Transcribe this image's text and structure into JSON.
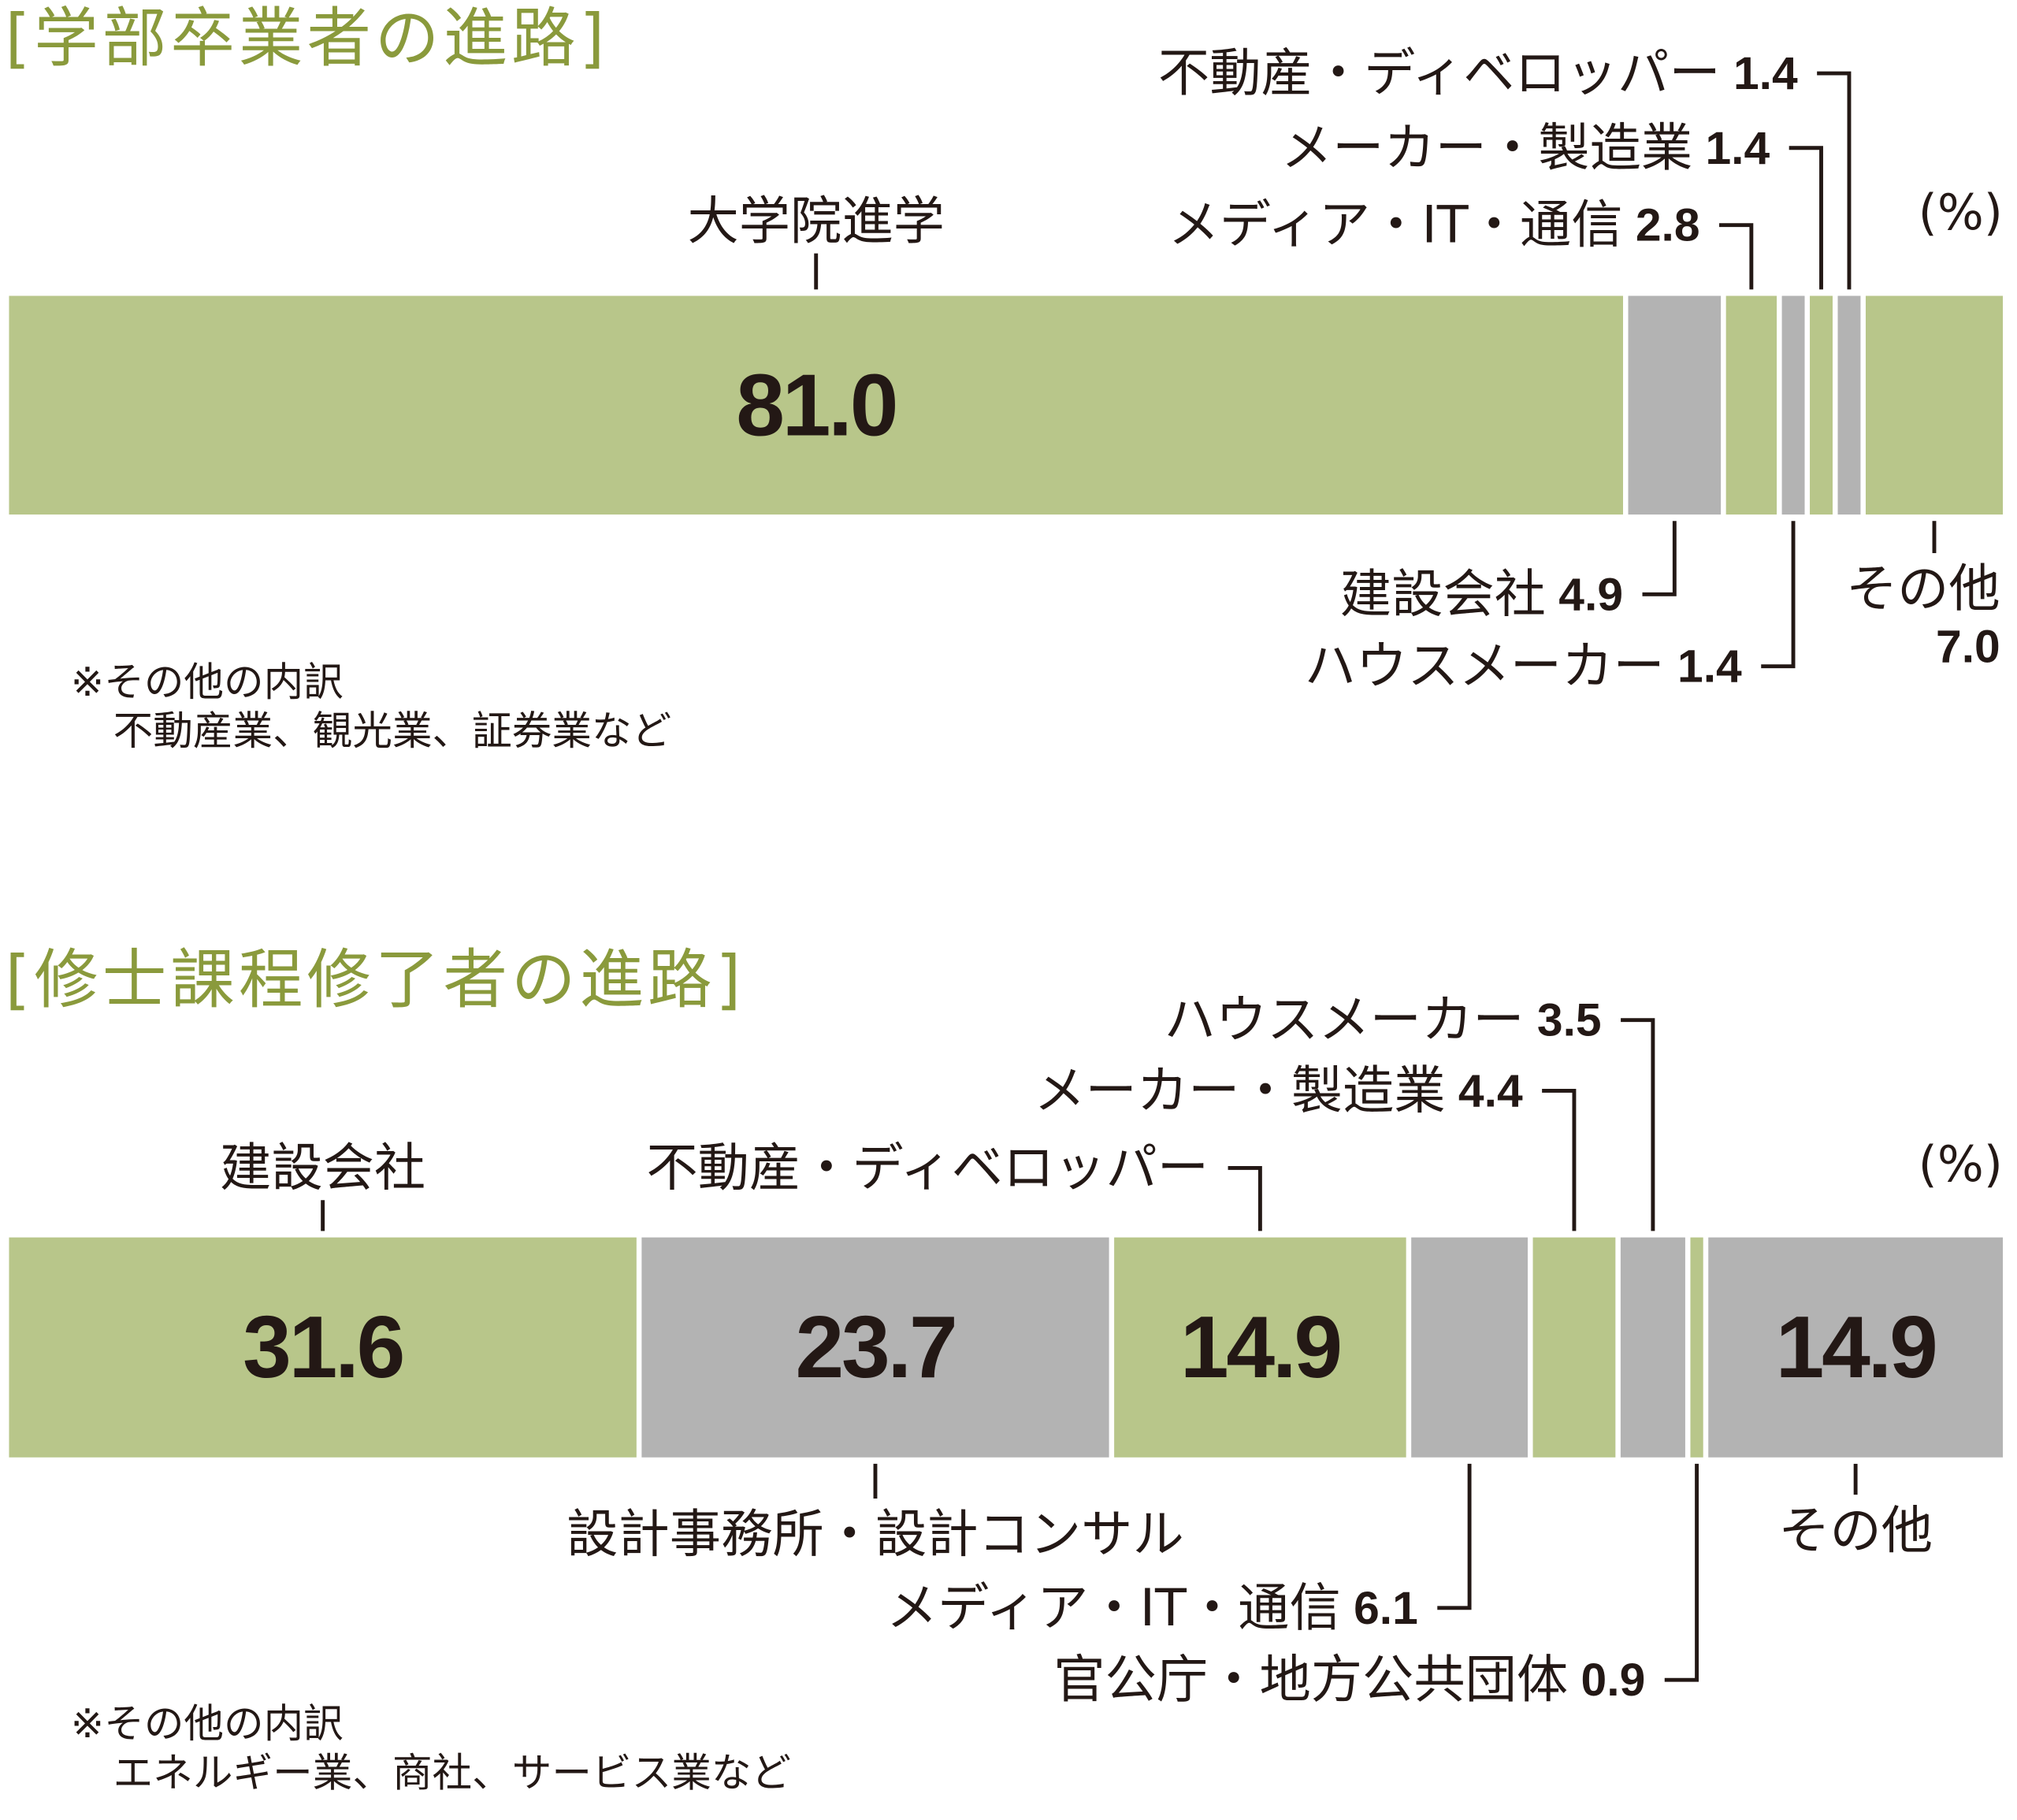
{
  "chart_data": [
    {
      "type": "stacked-bar",
      "title": "[学部卒業者の進路]",
      "unit": "(%)",
      "notes": [
        "※その他の内訳",
        "不動産業、観光業、証券業など"
      ],
      "series": [
        {
          "name": "大学院進学",
          "color": "#b8c68a",
          "values": [
            81.0
          ],
          "value_labels": [
            "81.0"
          ]
        },
        {
          "name": "建設会社",
          "color": "#b3b3b3",
          "values": [
            4.9
          ]
        },
        {
          "name": "メディア・IT・通信",
          "color": "#b8c68a",
          "values": [
            2.8
          ]
        },
        {
          "name": "ハウスメーカー",
          "color": "#b3b3b3",
          "values": [
            1.4
          ]
        },
        {
          "name": "メーカー・製造業",
          "color": "#b8c68a",
          "values": [
            1.4
          ]
        },
        {
          "name": "不動産・ディベロッパー",
          "color": "#b3b3b3",
          "values": [
            1.4
          ]
        },
        {
          "name": "その他",
          "color": "#b8c68a",
          "values": [
            7.0
          ],
          "value_labels": [
            "7.0"
          ]
        }
      ]
    },
    {
      "type": "stacked-bar",
      "title": "[修士課程修了者の進路]",
      "unit": "(%)",
      "notes": [
        "※その他の内訳",
        "エネルギー業、商社、サービス業など"
      ],
      "series": [
        {
          "name": "建設会社",
          "color": "#b8c68a",
          "values": [
            31.6
          ]
        },
        {
          "name": "設計事務所・設計コンサル",
          "color": "#b3b3b3",
          "values": [
            23.7
          ]
        },
        {
          "name": "不動産・ディベロッパー",
          "color": "#b8c68a",
          "values": [
            14.9
          ]
        },
        {
          "name": "メディア・IT・通信",
          "color": "#b3b3b3",
          "values": [
            6.1
          ]
        },
        {
          "name": "メーカー・製造業",
          "color": "#b8c68a",
          "values": [
            4.4
          ]
        },
        {
          "name": "ハウスメーカー",
          "color": "#b3b3b3",
          "values": [
            3.5
          ]
        },
        {
          "name": "官公庁・地方公共団体",
          "color": "#b8c68a",
          "values": [
            0.9
          ]
        },
        {
          "name": "その他",
          "color": "#b3b3b3",
          "values": [
            14.9
          ]
        }
      ]
    }
  ]
}
